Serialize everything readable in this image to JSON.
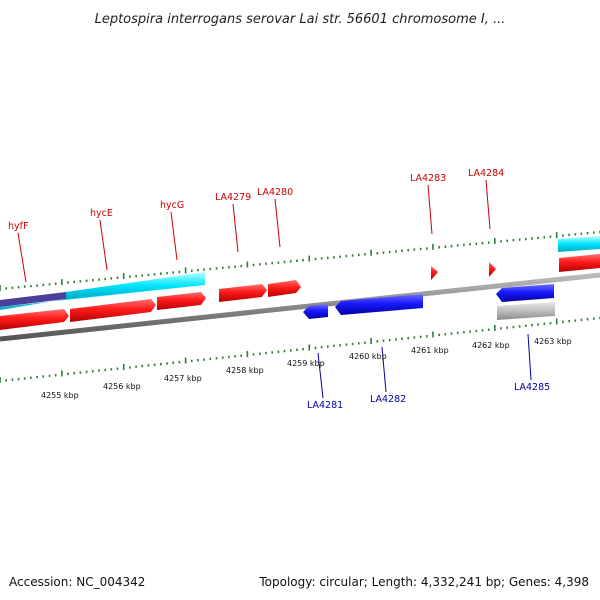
{
  "title": "Leptospira interrogans serovar Lai str. 56601 chromosome I, ...",
  "footer": {
    "accession": "Accession: NC_004342",
    "summary": "Topology: circular; Length: 4,332,241 bp; Genes: 4,398"
  },
  "scale": {
    "unit": "kbp",
    "labels": [
      "4255 kbp",
      "4256 kbp",
      "4257 kbp",
      "4258 kbp",
      "4259 kbp",
      "4260 kbp",
      "4261 kbp",
      "4262 kbp",
      "4263 kbp"
    ]
  },
  "forward_genes": [
    {
      "name": "hyfF",
      "color": "#cc0000"
    },
    {
      "name": "hycE",
      "color": "#cc0000"
    },
    {
      "name": "hycG",
      "color": "#cc0000"
    },
    {
      "name": "LA4279",
      "color": "#cc0000"
    },
    {
      "name": "LA4280",
      "color": "#cc0000"
    },
    {
      "name": "LA4283",
      "color": "#cc0000"
    },
    {
      "name": "LA4284",
      "color": "#cc0000"
    }
  ],
  "reverse_genes": [
    {
      "name": "LA4281",
      "color": "#0000aa"
    },
    {
      "name": "LA4282",
      "color": "#0000aa"
    },
    {
      "name": "LA4285",
      "color": "#0000aa"
    }
  ],
  "colors": {
    "forward_gene": "#ff0000",
    "reverse_gene": "#0000ff",
    "operon": "#00e5ff",
    "operon_dark": "#4b3f9a",
    "backbone": "#888888",
    "tick": "#2e7d32",
    "pseudo": "#c0c0c0"
  }
}
